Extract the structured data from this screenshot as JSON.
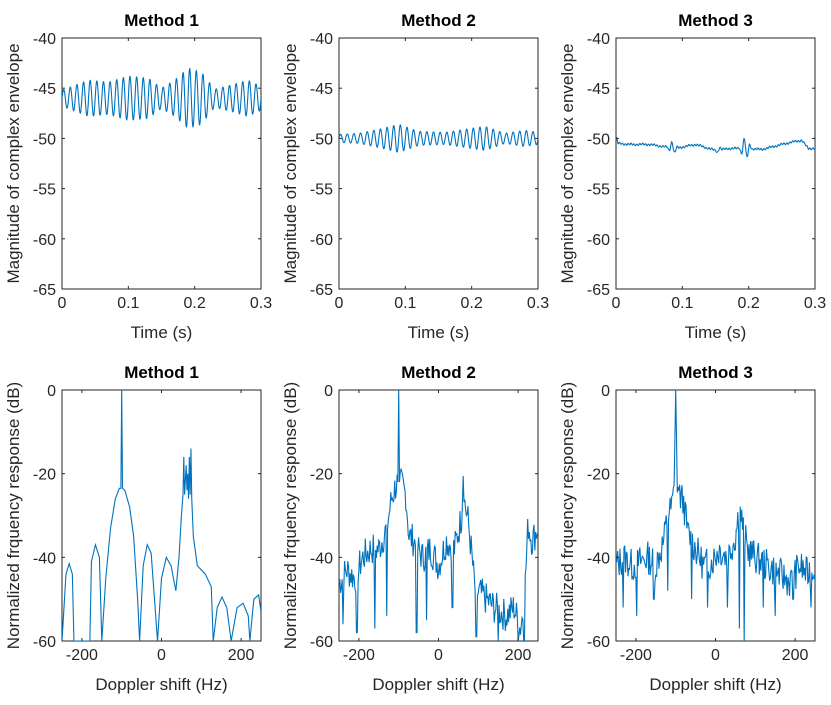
{
  "colors": {
    "line": "#0072bd",
    "axis": "#262626",
    "background": "#ffffff"
  },
  "chart_data": [
    {
      "type": "line",
      "title": "Method 1",
      "xlabel": "Time (s)",
      "ylabel": "Magnitude of complex envelope",
      "xlim": [
        0,
        0.3
      ],
      "ylim": [
        -65,
        -40
      ],
      "xticks": [
        0,
        0.1,
        0.2,
        0.3
      ],
      "xtick_labels": [
        "0",
        "0.1",
        "0.2",
        "0.3"
      ],
      "yticks": [
        -40,
        -45,
        -50,
        -55,
        -60,
        -65
      ],
      "ytick_labels": [
        "-40",
        "-45",
        "-50",
        "-55",
        "-60",
        "-65"
      ],
      "series": [
        {
          "name": "Method 1",
          "kind": "envelope",
          "base": -46.0,
          "x_end": 0.3,
          "env_points": [
            [
              0,
              0.8
            ],
            [
              0.04,
              1.8
            ],
            [
              0.07,
              1.6
            ],
            [
              0.1,
              2.2
            ],
            [
              0.13,
              2.0
            ],
            [
              0.15,
              1.0
            ],
            [
              0.17,
              1.8
            ],
            [
              0.19,
              3.0
            ],
            [
              0.21,
              2.6
            ],
            [
              0.23,
              0.9
            ],
            [
              0.26,
              1.4
            ],
            [
              0.28,
              1.8
            ],
            [
              0.3,
              1.2
            ]
          ]
        }
      ]
    },
    {
      "type": "line",
      "title": "Method 2",
      "xlabel": "Time (s)",
      "ylabel": "Magnitude of complex envelope",
      "xlim": [
        0,
        0.3
      ],
      "ylim": [
        -65,
        -40
      ],
      "xticks": [
        0,
        0.1,
        0.2,
        0.3
      ],
      "xtick_labels": [
        "0",
        "0.1",
        "0.2",
        "0.3"
      ],
      "yticks": [
        -40,
        -45,
        -50,
        -55,
        -60,
        -65
      ],
      "ytick_labels": [
        "-40",
        "-45",
        "-50",
        "-55",
        "-60",
        "-65"
      ],
      "series": [
        {
          "name": "Method 2",
          "kind": "envelope",
          "base": -50.0,
          "x_end": 0.3,
          "env_points": [
            [
              0,
              0.4
            ],
            [
              0.03,
              0.5
            ],
            [
              0.06,
              0.9
            ],
            [
              0.09,
              1.4
            ],
            [
              0.12,
              0.7
            ],
            [
              0.16,
              0.6
            ],
            [
              0.19,
              0.9
            ],
            [
              0.22,
              1.2
            ],
            [
              0.25,
              0.5
            ],
            [
              0.28,
              0.8
            ],
            [
              0.3,
              0.6
            ]
          ]
        }
      ]
    },
    {
      "type": "line",
      "title": "Method 3",
      "xlabel": "Time (s)",
      "ylabel": "Magnitude of complex envelope",
      "xlim": [
        0,
        0.3
      ],
      "ylim": [
        -65,
        -40
      ],
      "xticks": [
        0,
        0.1,
        0.2,
        0.3
      ],
      "xtick_labels": [
        "0",
        "0.1",
        "0.2",
        "0.3"
      ],
      "yticks": [
        -40,
        -45,
        -50,
        -55,
        -60,
        -65
      ],
      "ytick_labels": [
        "-40",
        "-45",
        "-50",
        "-55",
        "-60",
        "-65"
      ],
      "series": [
        {
          "name": "Method 3",
          "kind": "drift",
          "points": [
            [
              0,
              -49.8
            ],
            [
              0.003,
              -50.5
            ],
            [
              0.02,
              -50.6
            ],
            [
              0.05,
              -50.6
            ],
            [
              0.07,
              -50.8
            ],
            [
              0.09,
              -51.0
            ],
            [
              0.12,
              -50.6
            ],
            [
              0.15,
              -51.2
            ],
            [
              0.17,
              -51.0
            ],
            [
              0.2,
              -51.0
            ],
            [
              0.22,
              -51.1
            ],
            [
              0.25,
              -50.6
            ],
            [
              0.27,
              -50.3
            ],
            [
              0.28,
              -50.2
            ],
            [
              0.29,
              -51.0
            ],
            [
              0.3,
              -51.0
            ]
          ],
          "bursts": [
            [
              0.085,
              0.01,
              0.6
            ],
            [
              0.195,
              0.012,
              1.0
            ],
            [
              0.155,
              0.006,
              0.3
            ]
          ]
        }
      ]
    },
    {
      "type": "line",
      "title": "Method 1",
      "xlabel": "Doppler shift (Hz)",
      "ylabel": "Normalized frquency response (dB)",
      "xlim": [
        -250,
        250
      ],
      "ylim": [
        -60,
        0
      ],
      "xticks": [
        -200,
        0,
        200
      ],
      "xtick_labels": [
        "-200",
        "0",
        "200"
      ],
      "yticks": [
        0,
        -20,
        -40,
        -60
      ],
      "ytick_labels": [
        "0",
        "-20",
        "-40",
        "-60"
      ],
      "series": [
        {
          "name": "Method 1",
          "kind": "spectrum_smooth",
          "nulls": [
            -220,
            -180,
            -150,
            -55,
            -10,
            40,
            80,
            130,
            175,
            220
          ],
          "points": [
            [
              -250,
              -60
            ],
            [
              -240,
              -44
            ],
            [
              -232,
              -41.5
            ],
            [
              -224,
              -44
            ],
            [
              -220,
              -60
            ],
            [
              -180,
              -60
            ],
            [
              -176,
              -41
            ],
            [
              -166,
              -37
            ],
            [
              -156,
              -40
            ],
            [
              -150,
              -60
            ],
            [
              -140,
              -45
            ],
            [
              -128,
              -33
            ],
            [
              -116,
              -26
            ],
            [
              -106,
              -23.5
            ],
            [
              -102,
              -23.5
            ],
            [
              -100,
              0
            ],
            [
              -98,
              -23.5
            ],
            [
              -92,
              -24
            ],
            [
              -80,
              -28
            ],
            [
              -70,
              -35
            ],
            [
              -60,
              -50
            ],
            [
              -55,
              -60
            ],
            [
              -46,
              -42
            ],
            [
              -36,
              -37
            ],
            [
              -26,
              -39
            ],
            [
              -10,
              -60
            ],
            [
              0,
              -45
            ],
            [
              12,
              -40
            ],
            [
              24,
              -42
            ],
            [
              36,
              -48
            ],
            [
              44,
              -40
            ],
            [
              50,
              -30
            ],
            [
              54,
              -25
            ],
            [
              56,
              -16
            ],
            [
              58,
              -25
            ],
            [
              62,
              -18
            ],
            [
              64,
              -24
            ],
            [
              66,
              -20
            ],
            [
              68,
              -26
            ],
            [
              70,
              -16
            ],
            [
              72,
              -25
            ],
            [
              74,
              -14
            ],
            [
              76,
              -26
            ],
            [
              80,
              -35
            ],
            [
              90,
              -42
            ],
            [
              110,
              -44
            ],
            [
              125,
              -47
            ],
            [
              130,
              -60
            ],
            [
              140,
              -52
            ],
            [
              152,
              -49.5
            ],
            [
              164,
              -52
            ],
            [
              175,
              -60
            ],
            [
              190,
              -52
            ],
            [
              205,
              -51
            ],
            [
              218,
              -54
            ],
            [
              222,
              -60
            ],
            [
              232,
              -50
            ],
            [
              244,
              -49
            ],
            [
              250,
              -53
            ]
          ]
        }
      ]
    },
    {
      "type": "line",
      "title": "Method 2",
      "xlabel": "Doppler shift (Hz)",
      "ylabel": "Normalized frquency response (dB)",
      "xlim": [
        -250,
        250
      ],
      "ylim": [
        -60,
        0
      ],
      "xticks": [
        -200,
        0,
        200
      ],
      "xtick_labels": [
        "-200",
        "0",
        "200"
      ],
      "yticks": [
        0,
        -20,
        -40,
        -60
      ],
      "ytick_labels": [
        "0",
        "-20",
        "-40",
        "-60"
      ],
      "series": [
        {
          "name": "Method 2",
          "kind": "spectrum_noisy",
          "seed": 7,
          "points": [
            [
              -250,
              -46
            ],
            [
              -230,
              -43
            ],
            [
              -210,
              -45
            ],
            [
              -190,
              -40
            ],
            [
              -170,
              -38
            ],
            [
              -150,
              -38
            ],
            [
              -130,
              -33
            ],
            [
              -118,
              -26
            ],
            [
              -108,
              -23
            ],
            [
              -102,
              -22
            ],
            [
              -100,
              0
            ],
            [
              -98,
              -22
            ],
            [
              -92,
              -23
            ],
            [
              -82,
              -25
            ],
            [
              -74,
              -35
            ],
            [
              -62,
              -36
            ],
            [
              -40,
              -40
            ],
            [
              -20,
              -38
            ],
            [
              0,
              -42
            ],
            [
              20,
              -36
            ],
            [
              40,
              -38
            ],
            [
              52,
              -33
            ],
            [
              58,
              -30
            ],
            [
              62,
              -19
            ],
            [
              66,
              -27
            ],
            [
              74,
              -31
            ],
            [
              82,
              -38
            ],
            [
              92,
              -48
            ],
            [
              110,
              -49
            ],
            [
              140,
              -52
            ],
            [
              170,
              -54
            ],
            [
              190,
              -52
            ],
            [
              205,
              -57
            ],
            [
              215,
              -52
            ],
            [
              225,
              -32
            ],
            [
              235,
              -36
            ],
            [
              250,
              -33
            ]
          ],
          "dips": [
            [
              -240,
              -56
            ],
            [
              -205,
              -58
            ],
            [
              -160,
              -57
            ],
            [
              -130,
              -54
            ],
            [
              -55,
              -58
            ],
            [
              -30,
              -55
            ],
            [
              35,
              -52
            ],
            [
              95,
              -59
            ],
            [
              150,
              -60
            ],
            [
              200,
              -60
            ],
            [
              215,
              -60
            ]
          ]
        }
      ]
    },
    {
      "type": "line",
      "title": "Method 3",
      "xlabel": "Doppler shift (Hz)",
      "ylabel": "Normalized frquency response (dB)",
      "xlim": [
        -250,
        250
      ],
      "ylim": [
        -60,
        0
      ],
      "xticks": [
        -200,
        0,
        200
      ],
      "xtick_labels": [
        "-200",
        "0",
        "200"
      ],
      "yticks": [
        0,
        -20,
        -40,
        -60
      ],
      "ytick_labels": [
        "0",
        "-20",
        "-40",
        "-60"
      ],
      "series": [
        {
          "name": "Method 3",
          "kind": "spectrum_noisy",
          "seed": 13,
          "points": [
            [
              -250,
              -42
            ],
            [
              -230,
              -40
            ],
            [
              -210,
              -42
            ],
            [
              -190,
              -41
            ],
            [
              -170,
              -40
            ],
            [
              -150,
              -42
            ],
            [
              -130,
              -36
            ],
            [
              -120,
              -30
            ],
            [
              -110,
              -28
            ],
            [
              -104,
              -24
            ],
            [
              -100,
              0
            ],
            [
              -96,
              -22
            ],
            [
              -90,
              -25
            ],
            [
              -80,
              -27
            ],
            [
              -70,
              -34
            ],
            [
              -50,
              -38
            ],
            [
              -30,
              -42
            ],
            [
              -10,
              -41
            ],
            [
              10,
              -38
            ],
            [
              30,
              -40
            ],
            [
              50,
              -35
            ],
            [
              60,
              -28
            ],
            [
              66,
              -31
            ],
            [
              80,
              -38
            ],
            [
              100,
              -40
            ],
            [
              130,
              -42
            ],
            [
              160,
              -44
            ],
            [
              190,
              -46
            ],
            [
              210,
              -42
            ],
            [
              230,
              -44
            ],
            [
              250,
              -42
            ]
          ],
          "dips": [
            [
              -232,
              -52
            ],
            [
              -198,
              -54
            ],
            [
              -155,
              -50
            ],
            [
              -120,
              -48
            ],
            [
              -60,
              -50
            ],
            [
              -20,
              -52
            ],
            [
              30,
              -52
            ],
            [
              60,
              -57
            ],
            [
              72,
              -60
            ],
            [
              120,
              -52
            ],
            [
              150,
              -54
            ],
            [
              195,
              -50
            ],
            [
              240,
              -52
            ]
          ]
        }
      ]
    }
  ]
}
